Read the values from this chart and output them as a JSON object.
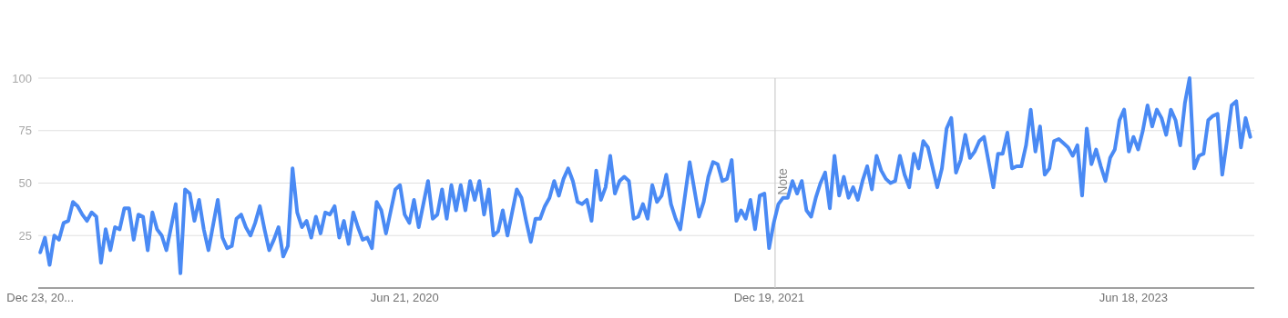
{
  "chart_data": {
    "type": "line",
    "xlim": [
      "2018-12-20",
      "2023-12-16"
    ],
    "xticks": [
      {
        "value": "2018-12-23",
        "label": "Dec 23, 20..."
      },
      {
        "value": "2020-06-21",
        "label": "Jun 21, 2020"
      },
      {
        "value": "2021-12-19",
        "label": "Dec 19, 2021"
      },
      {
        "value": "2023-06-18",
        "label": "Jun 18, 2023"
      }
    ],
    "ylim": [
      0,
      100
    ],
    "yticks": [
      25,
      50,
      75,
      100
    ],
    "grid": "y",
    "marker": "none",
    "line_style": "solid",
    "ref_lines": [
      {
        "axis": "x",
        "value": "2021-12-28",
        "label": "Note",
        "color": "#cccccc"
      }
    ],
    "series": [
      {
        "color": "#4a8af4",
        "x": [
          "2018-12-23",
          "2018-12-30",
          "2019-01-06",
          "2019-01-13",
          "2019-01-20",
          "2019-01-27",
          "2019-02-03",
          "2019-02-10",
          "2019-02-17",
          "2019-02-24",
          "2019-03-03",
          "2019-03-10",
          "2019-03-17",
          "2019-03-24",
          "2019-03-31",
          "2019-04-07",
          "2019-04-14",
          "2019-04-21",
          "2019-04-28",
          "2019-05-05",
          "2019-05-12",
          "2019-05-19",
          "2019-05-26",
          "2019-06-02",
          "2019-06-09",
          "2019-06-16",
          "2019-06-23",
          "2019-06-30",
          "2019-07-14",
          "2019-07-21",
          "2019-07-28",
          "2019-08-04",
          "2019-08-11",
          "2019-08-18",
          "2019-08-25",
          "2019-09-01",
          "2019-09-15",
          "2019-09-22",
          "2019-09-29",
          "2019-10-06",
          "2019-10-13",
          "2019-10-20",
          "2019-10-27",
          "2019-11-03",
          "2019-11-10",
          "2019-11-17",
          "2019-11-24",
          "2019-12-01",
          "2019-12-08",
          "2019-12-15",
          "2019-12-22",
          "2019-12-29",
          "2020-01-05",
          "2020-01-12",
          "2020-01-19",
          "2020-01-26",
          "2020-02-02",
          "2020-02-09",
          "2020-02-16",
          "2020-02-23",
          "2020-03-01",
          "2020-03-08",
          "2020-03-15",
          "2020-03-22",
          "2020-03-29",
          "2020-04-05",
          "2020-04-12",
          "2020-04-19",
          "2020-04-26",
          "2020-05-03",
          "2020-05-10",
          "2020-05-17",
          "2020-05-24",
          "2020-06-07",
          "2020-06-14",
          "2020-06-21",
          "2020-06-28",
          "2020-07-05",
          "2020-07-12",
          "2020-07-26",
          "2020-08-02",
          "2020-08-09",
          "2020-08-16",
          "2020-08-23",
          "2020-08-30",
          "2020-09-06",
          "2020-09-13",
          "2020-09-20",
          "2020-09-27",
          "2020-10-04",
          "2020-10-11",
          "2020-10-18",
          "2020-10-25",
          "2020-11-01",
          "2020-11-08",
          "2020-11-15",
          "2020-11-22",
          "2020-12-06",
          "2020-12-13",
          "2020-12-20",
          "2020-12-27",
          "2021-01-03",
          "2021-01-10",
          "2021-01-17",
          "2021-01-24",
          "2021-01-31",
          "2021-02-07",
          "2021-02-14",
          "2021-02-21",
          "2021-02-28",
          "2021-03-07",
          "2021-03-14",
          "2021-03-21",
          "2021-03-28",
          "2021-04-04",
          "2021-04-11",
          "2021-04-18",
          "2021-04-25",
          "2021-05-02",
          "2021-05-09",
          "2021-05-16",
          "2021-05-23",
          "2021-05-30",
          "2021-06-06",
          "2021-06-13",
          "2021-06-20",
          "2021-06-27",
          "2021-07-04",
          "2021-07-11",
          "2021-07-18",
          "2021-07-25",
          "2021-08-01",
          "2021-08-08",
          "2021-08-22",
          "2021-08-29",
          "2021-09-05",
          "2021-09-12",
          "2021-09-19",
          "2021-09-26",
          "2021-10-03",
          "2021-10-10",
          "2021-10-17",
          "2021-10-24",
          "2021-10-31",
          "2021-11-07",
          "2021-11-14",
          "2021-11-21",
          "2021-11-28",
          "2021-12-05",
          "2021-12-12",
          "2021-12-19",
          "2021-12-26",
          "2022-01-02",
          "2022-01-09",
          "2022-01-16",
          "2022-01-23",
          "2022-01-30",
          "2022-02-06",
          "2022-02-13",
          "2022-02-20",
          "2022-02-27",
          "2022-03-06",
          "2022-03-13",
          "2022-03-20",
          "2022-03-27",
          "2022-04-03",
          "2022-04-10",
          "2022-04-17",
          "2022-04-24",
          "2022-05-01",
          "2022-05-08",
          "2022-05-15",
          "2022-05-22",
          "2022-05-29",
          "2022-06-05",
          "2022-06-12",
          "2022-06-19",
          "2022-06-26",
          "2022-07-03",
          "2022-07-10",
          "2022-07-17",
          "2022-07-24",
          "2022-07-31",
          "2022-08-07",
          "2022-08-14",
          "2022-08-28",
          "2022-09-04",
          "2022-09-11",
          "2022-09-18",
          "2022-09-25",
          "2022-10-02",
          "2022-10-09",
          "2022-10-16",
          "2022-10-23",
          "2022-10-30",
          "2022-11-06",
          "2022-11-13",
          "2022-11-20",
          "2022-11-27",
          "2022-12-04",
          "2022-12-11",
          "2022-12-18",
          "2022-12-25",
          "2023-01-01",
          "2023-01-08",
          "2023-01-15",
          "2023-01-22",
          "2023-01-29",
          "2023-02-05",
          "2023-02-12",
          "2023-02-19",
          "2023-02-26",
          "2023-03-05",
          "2023-03-12",
          "2023-03-19",
          "2023-03-26",
          "2023-04-02",
          "2023-04-09",
          "2023-04-16",
          "2023-04-23",
          "2023-04-30",
          "2023-05-07",
          "2023-05-14",
          "2023-05-21",
          "2023-05-28",
          "2023-06-04",
          "2023-06-11",
          "2023-06-18",
          "2023-06-25",
          "2023-07-02",
          "2023-07-09",
          "2023-07-16",
          "2023-07-23",
          "2023-07-30",
          "2023-08-06",
          "2023-08-13",
          "2023-08-20",
          "2023-08-27",
          "2023-09-03",
          "2023-09-10",
          "2023-09-17",
          "2023-09-24",
          "2023-10-01",
          "2023-10-08",
          "2023-10-15",
          "2023-10-22",
          "2023-10-29",
          "2023-11-05",
          "2023-11-12",
          "2023-11-19",
          "2023-11-26",
          "2023-12-03",
          "2023-12-10"
        ],
        "values": [
          17,
          24,
          11,
          25,
          23,
          31,
          32,
          41,
          39,
          35,
          32,
          36,
          34,
          12,
          28,
          18,
          29,
          28,
          38,
          38,
          23,
          35,
          34,
          18,
          36,
          28,
          25,
          18,
          40,
          7,
          47,
          45,
          32,
          42,
          28,
          18,
          42,
          24,
          19,
          20,
          33,
          35,
          29,
          25,
          31,
          39,
          28,
          18,
          23,
          29,
          15,
          20,
          57,
          36,
          29,
          32,
          24,
          34,
          26,
          36,
          35,
          39,
          24,
          32,
          21,
          36,
          29,
          23,
          24,
          19,
          41,
          37,
          26,
          47,
          49,
          35,
          31,
          42,
          29,
          51,
          33,
          35,
          47,
          33,
          49,
          37,
          49,
          37,
          51,
          42,
          51,
          35,
          47,
          25,
          27,
          37,
          25,
          47,
          43,
          32,
          22,
          33,
          33,
          39,
          43,
          51,
          44,
          52,
          57,
          51,
          41,
          40,
          42,
          32,
          56,
          42,
          48,
          63,
          45,
          51,
          53,
          51,
          33,
          34,
          40,
          33,
          49,
          41,
          44,
          54,
          40,
          33,
          28,
          60,
          47,
          34,
          41,
          53,
          60,
          59,
          51,
          52,
          61,
          32,
          37,
          33,
          42,
          28,
          44,
          45,
          19,
          31,
          40,
          43,
          43,
          51,
          45,
          51,
          37,
          34,
          43,
          50,
          55,
          38,
          63,
          44,
          53,
          43,
          48,
          42,
          51,
          58,
          47,
          63,
          56,
          52,
          50,
          51,
          63,
          54,
          48,
          64,
          57,
          70,
          67,
          48,
          57,
          76,
          81,
          55,
          61,
          73,
          62,
          65,
          70,
          72,
          60,
          48,
          64,
          64,
          74,
          57,
          58,
          58,
          68,
          85,
          65,
          77,
          54,
          57,
          70,
          71,
          69,
          67,
          63,
          68,
          44,
          76,
          59,
          66,
          58,
          51,
          62,
          66,
          80,
          85,
          65,
          72,
          66,
          75,
          87,
          77,
          85,
          81,
          73,
          85,
          80,
          68,
          88,
          100,
          57,
          63,
          64,
          80,
          82,
          83,
          54,
          70,
          87,
          89,
          67,
          81,
          72
        ]
      }
    ]
  }
}
